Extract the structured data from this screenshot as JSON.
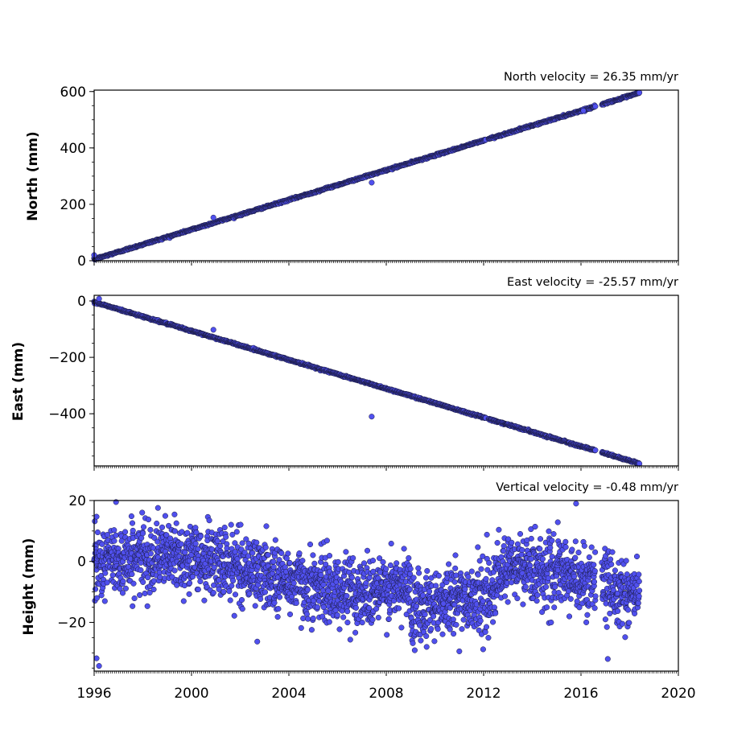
{
  "colors": {
    "marker_fill": "#5050ee",
    "marker_edge": "#1a1a40",
    "axis": "#000000"
  },
  "chart_data": [
    {
      "type": "scatter",
      "title": "North velocity = 26.35 mm/yr",
      "ylabel": "North (mm)",
      "xlim": [
        1996,
        2020
      ],
      "ylim": [
        0,
        605
      ],
      "yticks": [
        0,
        200,
        400,
        600
      ],
      "velocity": 26.35,
      "x_range_data": [
        1996.0,
        2018.4
      ],
      "intercept": 5,
      "noise": 1.5,
      "outliers": [
        [
          1996.0,
          20
        ],
        [
          2000.9,
          153
        ],
        [
          2007.4,
          277
        ],
        [
          2016.1,
          532
        ]
      ]
    },
    {
      "type": "scatter",
      "title": "East velocity = -25.57 mm/yr",
      "ylabel": "East (mm)",
      "xlim": [
        1996,
        2020
      ],
      "ylim": [
        -585,
        20
      ],
      "yticks": [
        0,
        -200,
        -400
      ],
      "velocity": -25.57,
      "x_range_data": [
        1996.0,
        2018.4
      ],
      "intercept": -4,
      "noise": 1.5,
      "outliers": [
        [
          1996.2,
          8
        ],
        [
          2000.9,
          -102
        ],
        [
          2007.4,
          -410
        ]
      ]
    },
    {
      "type": "scatter",
      "title": "Vertical velocity = -0.48 mm/yr",
      "ylabel": "Height (mm)",
      "xlim": [
        1996,
        2020
      ],
      "ylim": [
        -36,
        20
      ],
      "yticks": [
        20,
        0,
        -20
      ],
      "velocity": -0.48,
      "x_range_data": [
        1996.0,
        2018.4
      ],
      "intercept": -5,
      "noise": 5.5,
      "outliers": [
        [
          1996.9,
          19.5
        ],
        [
          1996.1,
          14.7
        ],
        [
          1996.1,
          -31.8
        ],
        [
          1996.2,
          -34.3
        ],
        [
          2002.7,
          -26.3
        ],
        [
          2015.8,
          19.0
        ],
        [
          2017.1,
          -32.0
        ],
        [
          2011.0,
          -29.5
        ]
      ]
    }
  ],
  "xaxis": {
    "ticks": [
      1996,
      2000,
      2004,
      2008,
      2012,
      2016,
      2020
    ]
  }
}
